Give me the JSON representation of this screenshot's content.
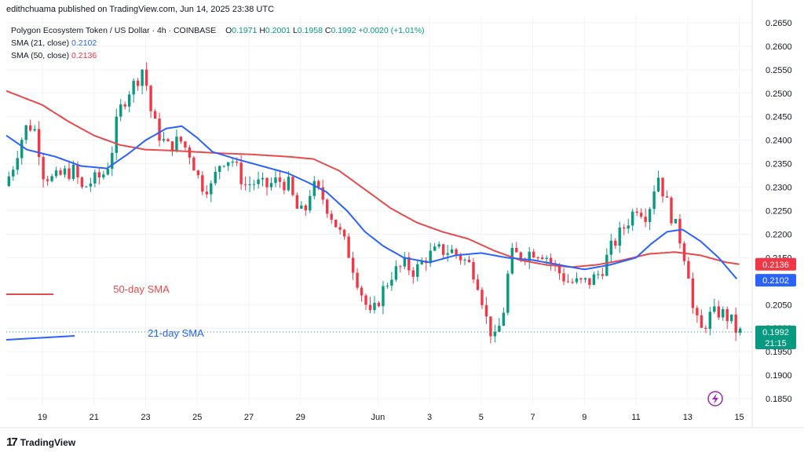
{
  "header": {
    "publisher_line": "edithchuama published on TradingView.com, Jun 14, 2025 23:38 UTC"
  },
  "legend": {
    "symbol": "Polygon Ecosystem Token / US Dollar · 4h · COINBASE",
    "o_label": "O",
    "o_value": "0.1971",
    "h_label": "H",
    "h_value": "0.2001",
    "l_label": "L",
    "l_value": "0.1958",
    "c_label": "C",
    "c_value": "0.1992",
    "change": "+0.0020 (+1.01%)",
    "sma21_label": "SMA (21, close)",
    "sma21_value": "0.2102",
    "sma50_label": "SMA (50, close)",
    "sma50_value": "0.2136"
  },
  "annotations": {
    "sma50_text": "50-day SMA",
    "sma21_text": "21-day SMA"
  },
  "price_tags": {
    "sma50": "0.2136",
    "sma21": "0.2102",
    "last": "0.1992",
    "countdown": "21:15"
  },
  "footer": {
    "brand": "TradingView",
    "logo_glyph": "17"
  },
  "colors": {
    "up": "#089981",
    "down": "#f23645",
    "sma21": "#2962ff",
    "sma50": "#e8494b",
    "grid": "#f0f3fa",
    "axis_text": "#131722",
    "last_line": "#089981"
  },
  "chart_data": {
    "type": "candlestick",
    "y_ticks": [
      "0.2650",
      "0.2600",
      "0.2550",
      "0.2500",
      "0.2450",
      "0.2400",
      "0.2350",
      "0.2300",
      "0.2250",
      "0.2200",
      "0.2150",
      "0.2050",
      "0.2000",
      "0.1950",
      "0.1900",
      "0.1850"
    ],
    "ylim": [
      0.1835,
      0.2665
    ],
    "x_ticks": [
      {
        "label": "19",
        "day": 19
      },
      {
        "label": "21",
        "day": 21
      },
      {
        "label": "23",
        "day": 23
      },
      {
        "label": "25",
        "day": 25
      },
      {
        "label": "27",
        "day": 27
      },
      {
        "label": "29",
        "day": 29
      },
      {
        "label": "Jun",
        "day": 32
      },
      {
        "label": "3",
        "day": 34
      },
      {
        "label": "5",
        "day": 36
      },
      {
        "label": "7",
        "day": 38
      },
      {
        "label": "9",
        "day": 40
      },
      {
        "label": "11",
        "day": 42
      },
      {
        "label": "13",
        "day": 44
      },
      {
        "label": "15",
        "day": 46
      }
    ],
    "x_day_range": [
      17.6,
      46.5
    ],
    "last_price": 0.1992,
    "sma21_anchors": [
      [
        17.6,
        0.241
      ],
      [
        18.4,
        0.238
      ],
      [
        19.5,
        0.2365
      ],
      [
        20.5,
        0.2345
      ],
      [
        21.5,
        0.234
      ],
      [
        22.3,
        0.237
      ],
      [
        23.0,
        0.24
      ],
      [
        23.8,
        0.2425
      ],
      [
        24.4,
        0.243
      ],
      [
        25.0,
        0.2405
      ],
      [
        25.6,
        0.2375
      ],
      [
        26.5,
        0.236
      ],
      [
        27.5,
        0.2345
      ],
      [
        28.5,
        0.233
      ],
      [
        29.3,
        0.231
      ],
      [
        30.0,
        0.229
      ],
      [
        30.8,
        0.225
      ],
      [
        31.5,
        0.2205
      ],
      [
        32.2,
        0.2175
      ],
      [
        33.0,
        0.215
      ],
      [
        34.0,
        0.214
      ],
      [
        35.0,
        0.2155
      ],
      [
        36.0,
        0.216
      ],
      [
        37.0,
        0.215
      ],
      [
        38.0,
        0.2145
      ],
      [
        39.0,
        0.2135
      ],
      [
        40.0,
        0.2125
      ],
      [
        41.0,
        0.2135
      ],
      [
        42.0,
        0.215
      ],
      [
        42.6,
        0.218
      ],
      [
        43.2,
        0.2205
      ],
      [
        43.8,
        0.221
      ],
      [
        44.5,
        0.2185
      ],
      [
        45.2,
        0.215
      ],
      [
        45.9,
        0.2105
      ]
    ],
    "sma50_anchors": [
      [
        17.6,
        0.2505
      ],
      [
        19.0,
        0.2475
      ],
      [
        20.0,
        0.244
      ],
      [
        21.0,
        0.241
      ],
      [
        22.0,
        0.239
      ],
      [
        23.0,
        0.238
      ],
      [
        24.0,
        0.2378
      ],
      [
        25.0,
        0.2375
      ],
      [
        26.0,
        0.2372
      ],
      [
        27.0,
        0.237
      ],
      [
        28.5,
        0.2365
      ],
      [
        29.5,
        0.236
      ],
      [
        30.5,
        0.2335
      ],
      [
        31.5,
        0.2295
      ],
      [
        32.5,
        0.2255
      ],
      [
        33.5,
        0.2225
      ],
      [
        34.5,
        0.2205
      ],
      [
        35.5,
        0.219
      ],
      [
        36.5,
        0.2165
      ],
      [
        37.5,
        0.2145
      ],
      [
        38.5,
        0.2135
      ],
      [
        39.5,
        0.213
      ],
      [
        40.5,
        0.2135
      ],
      [
        41.5,
        0.2145
      ],
      [
        42.5,
        0.2158
      ],
      [
        43.5,
        0.2162
      ],
      [
        44.5,
        0.2155
      ],
      [
        45.5,
        0.214
      ],
      [
        46.0,
        0.2136
      ]
    ],
    "candle_anchors": [
      [
        17.6,
        0.229
      ],
      [
        18.0,
        0.234
      ],
      [
        18.3,
        0.2395
      ],
      [
        18.6,
        0.2435
      ],
      [
        18.9,
        0.242
      ],
      [
        19.2,
        0.233
      ],
      [
        19.6,
        0.2315
      ],
      [
        20.0,
        0.233
      ],
      [
        20.4,
        0.2335
      ],
      [
        20.7,
        0.2295
      ],
      [
        21.0,
        0.231
      ],
      [
        21.5,
        0.2325
      ],
      [
        21.8,
        0.236
      ],
      [
        22.1,
        0.2455
      ],
      [
        22.5,
        0.2505
      ],
      [
        22.8,
        0.2525
      ],
      [
        23.1,
        0.256
      ],
      [
        23.3,
        0.2475
      ],
      [
        23.6,
        0.242
      ],
      [
        24.0,
        0.2385
      ],
      [
        24.5,
        0.24
      ],
      [
        24.9,
        0.237
      ],
      [
        25.3,
        0.2305
      ],
      [
        25.7,
        0.23
      ],
      [
        26.1,
        0.236
      ],
      [
        26.5,
        0.236
      ],
      [
        27.0,
        0.2305
      ],
      [
        27.4,
        0.231
      ],
      [
        27.8,
        0.23
      ],
      [
        28.3,
        0.2315
      ],
      [
        28.7,
        0.2305
      ],
      [
        29.0,
        0.2255
      ],
      [
        29.3,
        0.224
      ],
      [
        29.6,
        0.2305
      ],
      [
        30.0,
        0.228
      ],
      [
        30.5,
        0.2225
      ],
      [
        31.0,
        0.2165
      ],
      [
        31.5,
        0.208
      ],
      [
        31.9,
        0.202
      ],
      [
        32.3,
        0.2075
      ],
      [
        32.7,
        0.2115
      ],
      [
        33.2,
        0.2135
      ],
      [
        33.6,
        0.212
      ],
      [
        34.0,
        0.215
      ],
      [
        34.5,
        0.2165
      ],
      [
        35.0,
        0.2165
      ],
      [
        35.4,
        0.215
      ],
      [
        35.8,
        0.213
      ],
      [
        36.1,
        0.209
      ],
      [
        36.4,
        0.201
      ],
      [
        36.7,
        0.1975
      ],
      [
        37.0,
        0.2025
      ],
      [
        37.3,
        0.2155
      ],
      [
        37.7,
        0.2155
      ],
      [
        38.2,
        0.2165
      ],
      [
        38.6,
        0.216
      ],
      [
        39.0,
        0.213
      ],
      [
        39.5,
        0.21
      ],
      [
        40.0,
        0.2095
      ],
      [
        40.4,
        0.21
      ],
      [
        40.8,
        0.212
      ],
      [
        41.2,
        0.217
      ],
      [
        41.7,
        0.2215
      ],
      [
        42.2,
        0.226
      ],
      [
        42.6,
        0.224
      ],
      [
        43.0,
        0.233
      ],
      [
        43.3,
        0.2275
      ],
      [
        43.6,
        0.223
      ],
      [
        43.9,
        0.2185
      ],
      [
        44.2,
        0.212
      ],
      [
        44.4,
        0.2025
      ],
      [
        44.7,
        0.1995
      ],
      [
        45.0,
        0.2025
      ],
      [
        45.4,
        0.2035
      ],
      [
        45.8,
        0.202
      ],
      [
        46.1,
        0.199
      ]
    ]
  }
}
